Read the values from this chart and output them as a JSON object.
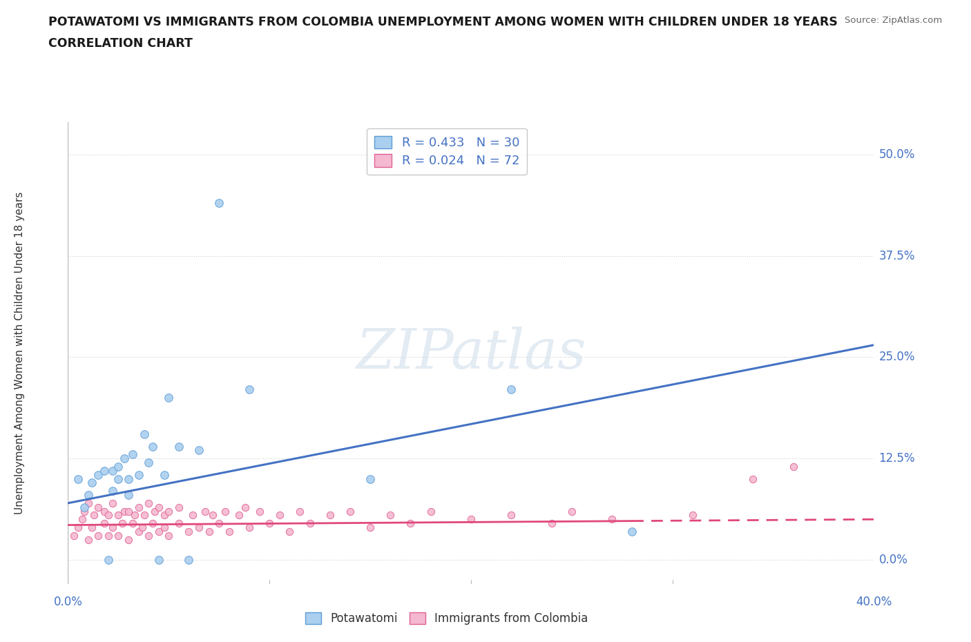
{
  "title_line1": "POTAWATOMI VS IMMIGRANTS FROM COLOMBIA UNEMPLOYMENT AMONG WOMEN WITH CHILDREN UNDER 18 YEARS",
  "title_line2": "CORRELATION CHART",
  "source": "Source: ZipAtlas.com",
  "ylabel": "Unemployment Among Women with Children Under 18 years",
  "xlim": [
    0.0,
    0.4
  ],
  "ylim": [
    -0.03,
    0.54
  ],
  "yticks": [
    0.0,
    0.125,
    0.25,
    0.375,
    0.5
  ],
  "ytick_labels": [
    "0.0%",
    "12.5%",
    "25.0%",
    "37.5%",
    "50.0%"
  ],
  "xtick_labels": [
    "0.0%",
    "40.0%"
  ],
  "xtick_pos": [
    0.0,
    0.4
  ],
  "potawatomi_R": 0.433,
  "potawatomi_N": 30,
  "colombia_R": 0.024,
  "colombia_N": 72,
  "potawatomi_color": "#aacfef",
  "potawatomi_edge_color": "#5b9bd5",
  "potawatomi_line_color": "#4472c4",
  "colombia_color": "#f4b8d1",
  "colombia_edge_color": "#e06090",
  "colombia_line_color": "#e0487a",
  "text_color": "#4472c4",
  "grid_color": "#d0d0d0",
  "axis_line_color": "#bbbbbb",
  "watermark_color": "#c8d8e8",
  "potawatomi_x": [
    0.005,
    0.008,
    0.01,
    0.012,
    0.015,
    0.018,
    0.02,
    0.022,
    0.022,
    0.025,
    0.025,
    0.028,
    0.03,
    0.03,
    0.032,
    0.035,
    0.038,
    0.04,
    0.042,
    0.045,
    0.048,
    0.05,
    0.055,
    0.06,
    0.065,
    0.075,
    0.09,
    0.15,
    0.22,
    0.28
  ],
  "potawatomi_y": [
    0.1,
    0.065,
    0.08,
    0.095,
    0.105,
    0.11,
    0.0,
    0.085,
    0.11,
    0.1,
    0.115,
    0.125,
    0.08,
    0.1,
    0.13,
    0.105,
    0.155,
    0.12,
    0.14,
    0.0,
    0.105,
    0.2,
    0.14,
    0.0,
    0.135,
    0.44,
    0.21,
    0.1,
    0.21,
    0.035
  ],
  "colombia_x": [
    0.003,
    0.005,
    0.007,
    0.008,
    0.01,
    0.01,
    0.012,
    0.013,
    0.015,
    0.015,
    0.018,
    0.018,
    0.02,
    0.02,
    0.022,
    0.022,
    0.025,
    0.025,
    0.027,
    0.028,
    0.03,
    0.03,
    0.032,
    0.033,
    0.035,
    0.035,
    0.037,
    0.038,
    0.04,
    0.04,
    0.042,
    0.043,
    0.045,
    0.045,
    0.048,
    0.048,
    0.05,
    0.05,
    0.055,
    0.055,
    0.06,
    0.062,
    0.065,
    0.068,
    0.07,
    0.072,
    0.075,
    0.078,
    0.08,
    0.085,
    0.088,
    0.09,
    0.095,
    0.1,
    0.105,
    0.11,
    0.115,
    0.12,
    0.13,
    0.14,
    0.15,
    0.16,
    0.17,
    0.18,
    0.2,
    0.22,
    0.24,
    0.25,
    0.27,
    0.31,
    0.34,
    0.36
  ],
  "colombia_y": [
    0.03,
    0.04,
    0.05,
    0.06,
    0.025,
    0.07,
    0.04,
    0.055,
    0.03,
    0.065,
    0.045,
    0.06,
    0.03,
    0.055,
    0.04,
    0.07,
    0.03,
    0.055,
    0.045,
    0.06,
    0.025,
    0.06,
    0.045,
    0.055,
    0.035,
    0.065,
    0.04,
    0.055,
    0.03,
    0.07,
    0.045,
    0.06,
    0.035,
    0.065,
    0.04,
    0.055,
    0.03,
    0.06,
    0.045,
    0.065,
    0.035,
    0.055,
    0.04,
    0.06,
    0.035,
    0.055,
    0.045,
    0.06,
    0.035,
    0.055,
    0.065,
    0.04,
    0.06,
    0.045,
    0.055,
    0.035,
    0.06,
    0.045,
    0.055,
    0.06,
    0.04,
    0.055,
    0.045,
    0.06,
    0.05,
    0.055,
    0.045,
    0.06,
    0.05,
    0.055,
    0.1,
    0.115
  ]
}
